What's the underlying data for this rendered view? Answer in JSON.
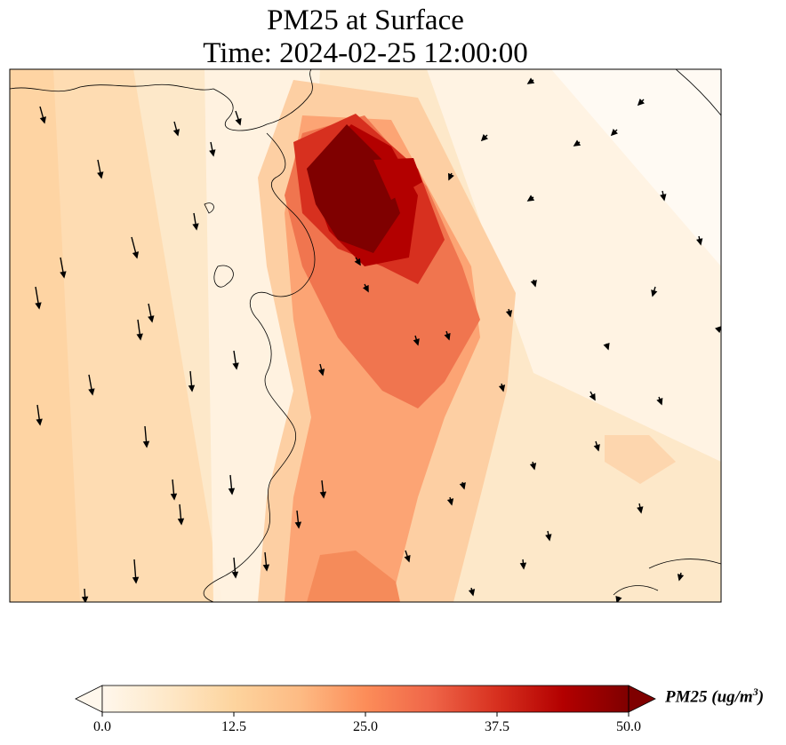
{
  "title": {
    "line1": "PM25 at Surface",
    "line2": "Time: 2024-02-25 12:00:00"
  },
  "colorbar": {
    "variable": "PM25",
    "unit_open": " (ug/m",
    "unit_exp": "3",
    "unit_close": ")",
    "min": 0.0,
    "max": 50.0,
    "ticks": [
      "0.0",
      "12.5",
      "25.0",
      "37.5",
      "50.0"
    ],
    "colormap": "OrRd",
    "extend": "both"
  },
  "colors": {
    "low": "#fff7ec",
    "c1": "#fee8c8",
    "c2": "#fdd49e",
    "c3": "#fdbb84",
    "c4": "#fc8d59",
    "c5": "#ef6548",
    "c6": "#d7301f",
    "c7": "#b30000",
    "high": "#7f0000"
  }
}
